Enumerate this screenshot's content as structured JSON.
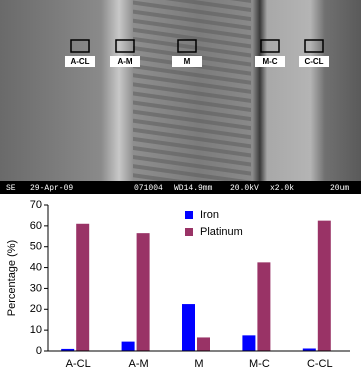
{
  "micrograph": {
    "regions": [
      "A-CL",
      "A-M",
      "M",
      "M-C",
      "C-CL"
    ],
    "info_bar": [
      "SE",
      "29-Apr-09",
      "071004",
      "WD14.9mm",
      "20.0kV",
      "x2.0k",
      "20um"
    ]
  },
  "chart_data": {
    "type": "bar",
    "y_label": "Percentage (%)",
    "categories": [
      "A-CL",
      "A-M",
      "M",
      "M-C",
      "C-CL"
    ],
    "series": [
      {
        "name": "Iron",
        "color": "#0000ff",
        "values": [
          1,
          4.5,
          22.5,
          7.5,
          1.2
        ]
      },
      {
        "name": "Platinum",
        "color": "#993366",
        "values": [
          61,
          56.5,
          6.5,
          42.5,
          62.5
        ]
      }
    ],
    "ylim": [
      0,
      70
    ],
    "yticks": [
      0,
      10,
      20,
      30,
      40,
      50,
      60,
      70
    ],
    "grid": false,
    "legend": "top-center"
  }
}
